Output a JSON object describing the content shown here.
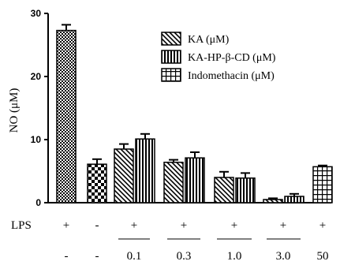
{
  "chart_data": {
    "type": "bar",
    "ylabel": "NO (μM)",
    "ylim": [
      0,
      30
    ],
    "yticks": [
      "0",
      "10",
      "20",
      "30"
    ],
    "legend": {
      "placement": "top-right",
      "entries": [
        {
          "label": "KA (μM)",
          "pattern": "diagonal"
        },
        {
          "label": "KA-HP-β-CD (μM)",
          "pattern": "vertical"
        },
        {
          "label": "Indomethacin (μM)",
          "pattern": "grid"
        }
      ]
    },
    "bars": [
      {
        "value": 27.3,
        "error": 0.9,
        "pattern": "dots"
      },
      {
        "value": 6.1,
        "error": 0.8,
        "pattern": "checker"
      },
      {
        "value": 8.5,
        "error": 0.8,
        "pattern": "diagonal"
      },
      {
        "value": 10.1,
        "error": 0.8,
        "pattern": "vertical"
      },
      {
        "value": 6.4,
        "error": 0.4,
        "pattern": "diagonal"
      },
      {
        "value": 7.1,
        "error": 0.9,
        "pattern": "vertical"
      },
      {
        "value": 4.0,
        "error": 0.9,
        "pattern": "diagonal"
      },
      {
        "value": 3.9,
        "error": 0.8,
        "pattern": "vertical"
      },
      {
        "value": 0.5,
        "error": 0.2,
        "pattern": "diagonal"
      },
      {
        "value": 1.0,
        "error": 0.4,
        "pattern": "vertical"
      },
      {
        "value": 5.7,
        "error": 0.2,
        "pattern": "grid"
      }
    ],
    "rows": {
      "lps_label": "LPS",
      "lps": [
        "+",
        "-",
        "+",
        "+",
        "+",
        "+",
        "+"
      ],
      "conc": [
        "-",
        "-",
        "0.1",
        "0.3",
        "1.0",
        "3.0",
        "50"
      ]
    }
  }
}
